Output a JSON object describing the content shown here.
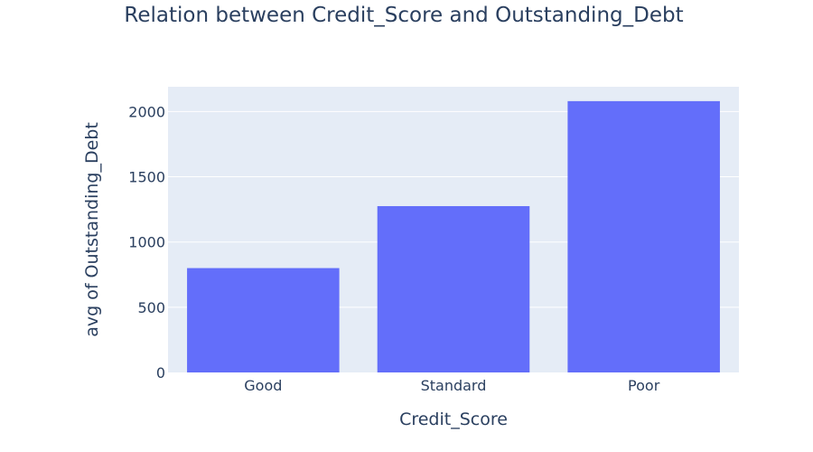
{
  "chart_data": {
    "type": "bar",
    "title": "Relation between Credit_Score and Outstanding_Debt",
    "xlabel": "Credit_Score",
    "ylabel": "avg of Outstanding_Debt",
    "categories": [
      "Good",
      "Standard",
      "Poor"
    ],
    "values": [
      800,
      1275,
      2080
    ],
    "ylim": [
      0,
      2190
    ],
    "yticks": [
      0,
      500,
      1000,
      1500,
      2000
    ],
    "grid": true,
    "colors": {
      "bar": "#636efa",
      "plot_background": "#e5ecf6",
      "gridline": "#ffffff",
      "text": "#2a3f5f"
    }
  }
}
